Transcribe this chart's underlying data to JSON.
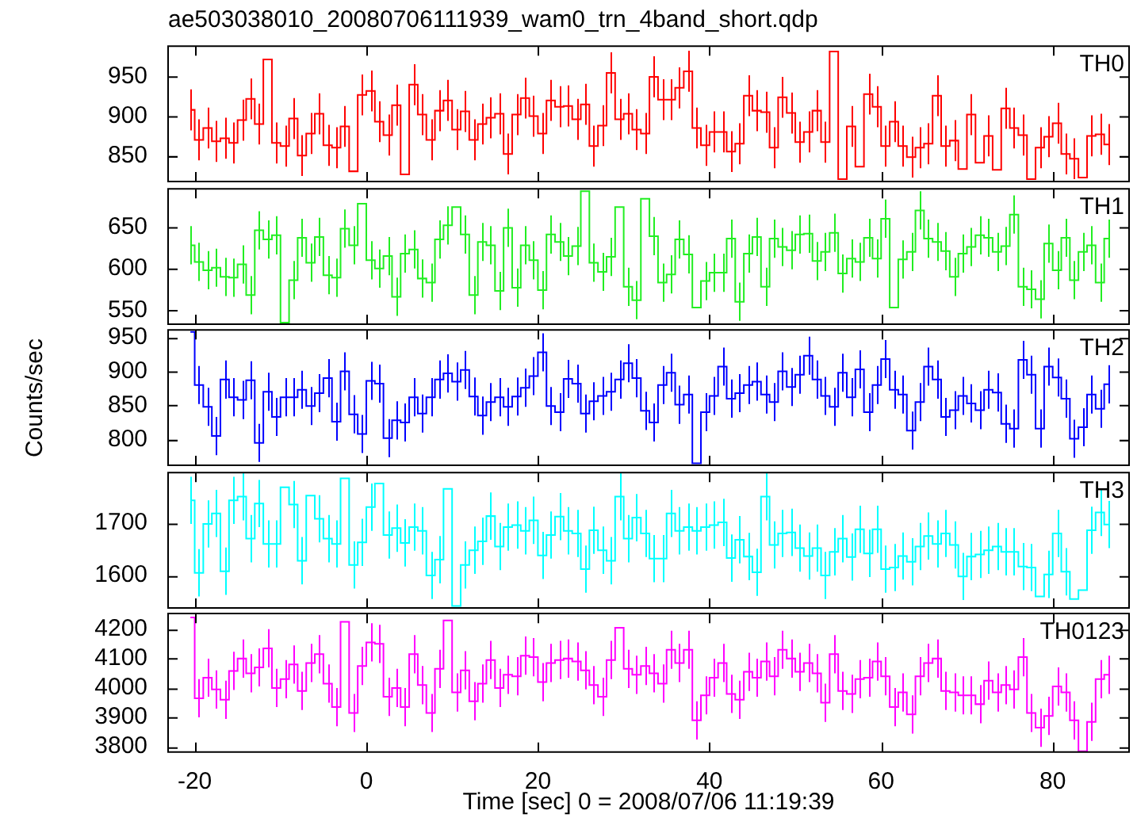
{
  "chart_data": [
    {
      "type": "step",
      "title": "ae503038010_20080706111939_wam0_trn_4band_short.qdp",
      "tick_labels": "y",
      "xlim": [
        -23.1,
        88.9
      ],
      "xticks": [
        -20,
        0,
        20,
        40,
        60,
        80
      ],
      "ylim": [
        817,
        989
      ],
      "yticks": [
        850,
        900,
        950
      ],
      "x": [
        -20.5,
        -19.5,
        -18.5,
        -17.5,
        -16.5,
        -15.5,
        -14.5,
        -13.5,
        -12.5,
        -11.5,
        -10.5,
        -9.5,
        -8.5,
        -7.5,
        -6.5,
        -5.5,
        -4.5,
        -3.5,
        -2.5,
        -1.5,
        -0.5,
        0.5,
        1.5,
        2.5,
        3.5,
        4.5,
        5.5,
        6.5,
        7.5,
        8.5,
        9.5,
        10.5,
        11.5,
        12.5,
        13.5,
        14.5,
        15.5,
        16.5,
        17.5,
        18.5,
        19.5,
        20.5,
        21.5,
        22.5,
        23.5,
        24.5,
        25.5,
        26.5,
        27.5,
        28.5,
        29.5,
        30.5,
        31.5,
        32.5,
        33.5,
        34.5,
        35.5,
        36.5,
        37.5,
        38.5,
        39.5,
        40.5,
        41.5,
        42.5,
        43.5,
        44.5,
        45.5,
        46.5,
        47.5,
        48.5,
        49.5,
        50.5,
        51.5,
        52.5,
        53.5,
        54.5,
        55.5,
        56.5,
        57.5,
        58.5,
        59.5,
        60.5,
        61.5,
        62.5,
        63.5,
        64.5,
        65.5,
        66.5,
        67.5,
        68.5,
        69.5,
        70.5,
        71.5,
        72.5,
        73.5,
        74.5,
        75.5,
        76.5,
        77.5,
        78.5,
        79.5,
        80.5,
        81.5,
        82.5,
        83.5,
        84.5,
        85.5,
        86.5
      ],
      "series": [
        {
          "name": "TH0",
          "color": "#ff0000",
          "values": [
            908,
            870,
            885,
            868,
            872,
            866,
            895,
            922,
            890,
            972,
            866,
            862,
            897,
            850,
            878,
            903,
            863,
            860,
            887,
            830,
            927,
            932,
            893,
            876,
            914,
            826,
            940,
            902,
            870,
            907,
            920,
            883,
            906,
            870,
            890,
            898,
            903,
            852,
            902,
            923,
            900,
            878,
            920,
            912,
            913,
            896,
            915,
            862,
            888,
            955,
            896,
            903,
            883,
            878,
            950,
            921,
            921,
            936,
            957,
            885,
            863,
            880,
            880,
            855,
            865,
            926,
            907,
            905,
            860,
            924,
            904,
            867,
            880,
            907,
            867,
            982,
            820,
            887,
            836,
            928,
            912,
            862,
            893,
            862,
            848,
            860,
            865,
            926,
            862,
            869,
            833,
            902,
            841,
            875,
            832,
            910,
            885,
            876,
            820,
            860,
            874,
            891,
            852,
            846,
            822,
            875,
            877,
            864
          ],
          "errors": [
            26,
            26,
            26,
            26,
            26,
            26,
            26,
            26,
            26,
            null,
            26,
            26,
            26,
            26,
            26,
            26,
            26,
            26,
            26,
            null,
            26,
            26,
            26,
            26,
            26,
            null,
            26,
            26,
            26,
            26,
            26,
            26,
            26,
            26,
            26,
            26,
            26,
            26,
            26,
            26,
            26,
            26,
            26,
            26,
            26,
            26,
            26,
            26,
            26,
            26,
            26,
            26,
            26,
            26,
            26,
            26,
            26,
            26,
            26,
            26,
            26,
            26,
            26,
            26,
            26,
            26,
            26,
            26,
            26,
            26,
            26,
            26,
            26,
            26,
            26,
            null,
            null,
            26,
            null,
            26,
            26,
            26,
            26,
            26,
            26,
            26,
            26,
            26,
            26,
            26,
            null,
            26,
            null,
            26,
            null,
            26,
            26,
            26,
            null,
            26,
            26,
            26,
            26,
            26,
            null,
            26,
            26,
            26
          ]
        }
      ]
    },
    {
      "type": "step",
      "tick_labels": "y",
      "xlim": [
        -23.1,
        88.9
      ],
      "xticks": [
        -20,
        0,
        20,
        40,
        60,
        80
      ],
      "ylim": [
        533,
        696
      ],
      "yticks": [
        550,
        600,
        650
      ],
      "x": [
        -20.5,
        -19.5,
        -18.5,
        -17.5,
        -16.5,
        -15.5,
        -14.5,
        -13.5,
        -12.5,
        -11.5,
        -10.5,
        -9.5,
        -8.5,
        -7.5,
        -6.5,
        -5.5,
        -4.5,
        -3.5,
        -2.5,
        -1.5,
        -0.5,
        0.5,
        1.5,
        2.5,
        3.5,
        4.5,
        5.5,
        6.5,
        7.5,
        8.5,
        9.5,
        10.5,
        11.5,
        12.5,
        13.5,
        14.5,
        15.5,
        16.5,
        17.5,
        18.5,
        19.5,
        20.5,
        21.5,
        22.5,
        23.5,
        24.5,
        25.5,
        26.5,
        27.5,
        28.5,
        29.5,
        30.5,
        31.5,
        32.5,
        33.5,
        34.5,
        35.5,
        36.5,
        37.5,
        38.5,
        39.5,
        40.5,
        41.5,
        42.5,
        43.5,
        44.5,
        45.5,
        46.5,
        47.5,
        48.5,
        49.5,
        50.5,
        51.5,
        52.5,
        53.5,
        54.5,
        55.5,
        56.5,
        57.5,
        58.5,
        59.5,
        60.5,
        61.5,
        62.5,
        63.5,
        64.5,
        65.5,
        66.5,
        67.5,
        68.5,
        69.5,
        70.5,
        71.5,
        72.5,
        73.5,
        74.5,
        75.5,
        76.5,
        77.5,
        78.5,
        79.5,
        80.5,
        81.5,
        82.5,
        83.5,
        84.5,
        85.5,
        86.5
      ],
      "series": [
        {
          "name": "TH1",
          "color": "#22ee22",
          "values": [
            628,
            608,
            598,
            601,
            590,
            589,
            605,
            568,
            646,
            635,
            640,
            535,
            586,
            637,
            607,
            638,
            592,
            589,
            648,
            628,
            678,
            610,
            600,
            615,
            566,
            618,
            623,
            588,
            583,
            635,
            652,
            674,
            641,
            568,
            632,
            628,
            573,
            649,
            577,
            628,
            610,
            574,
            641,
            632,
            615,
            627,
            693,
            607,
            596,
            614,
            674,
            578,
            562,
            684,
            639,
            583,
            593,
            635,
            617,
            553,
            585,
            595,
            595,
            636,
            560,
            618,
            638,
            578,
            636,
            626,
            622,
            641,
            642,
            609,
            620,
            643,
            594,
            612,
            608,
            637,
            612,
            660,
            553,
            611,
            620,
            670,
            636,
            632,
            621,
            590,
            618,
            626,
            640,
            637,
            620,
            627,
            665,
            578,
            575,
            563,
            630,
            598,
            637,
            586,
            620,
            628,
            583,
            636
          ],
          "errors": [
            23,
            23,
            23,
            23,
            23,
            23,
            23,
            23,
            23,
            23,
            23,
            null,
            23,
            23,
            23,
            23,
            23,
            23,
            23,
            23,
            null,
            23,
            23,
            23,
            23,
            23,
            23,
            23,
            23,
            23,
            23,
            null,
            23,
            23,
            23,
            23,
            23,
            23,
            23,
            23,
            23,
            23,
            23,
            23,
            23,
            23,
            null,
            23,
            23,
            23,
            null,
            23,
            23,
            null,
            23,
            23,
            23,
            23,
            23,
            null,
            23,
            23,
            23,
            23,
            23,
            23,
            23,
            23,
            23,
            23,
            23,
            23,
            23,
            23,
            23,
            23,
            23,
            23,
            23,
            23,
            23,
            23,
            null,
            23,
            23,
            23,
            23,
            23,
            23,
            23,
            23,
            23,
            23,
            23,
            23,
            23,
            23,
            23,
            23,
            23,
            23,
            23,
            23,
            23,
            23,
            23,
            23,
            23
          ]
        }
      ]
    },
    {
      "type": "step",
      "tick_labels": "y",
      "ylabel": "Counts/sec",
      "xlim": [
        -23.1,
        88.9
      ],
      "xticks": [
        -20,
        0,
        20,
        40,
        60,
        80
      ],
      "ylim": [
        762,
        961
      ],
      "yticks": [
        800,
        850,
        900,
        950
      ],
      "x": [
        -20.5,
        -19.5,
        -18.5,
        -17.5,
        -16.5,
        -15.5,
        -14.5,
        -13.5,
        -12.5,
        -11.5,
        -10.5,
        -9.5,
        -8.5,
        -7.5,
        -6.5,
        -5.5,
        -4.5,
        -3.5,
        -2.5,
        -1.5,
        -0.5,
        0.5,
        1.5,
        2.5,
        3.5,
        4.5,
        5.5,
        6.5,
        7.5,
        8.5,
        9.5,
        10.5,
        11.5,
        12.5,
        13.5,
        14.5,
        15.5,
        16.5,
        17.5,
        18.5,
        19.5,
        20.5,
        21.5,
        22.5,
        23.5,
        24.5,
        25.5,
        26.5,
        27.5,
        28.5,
        29.5,
        30.5,
        31.5,
        32.5,
        33.5,
        34.5,
        35.5,
        36.5,
        37.5,
        38.5,
        39.5,
        40.5,
        41.5,
        42.5,
        43.5,
        44.5,
        45.5,
        46.5,
        47.5,
        48.5,
        49.5,
        50.5,
        51.5,
        52.5,
        53.5,
        54.5,
        55.5,
        56.5,
        57.5,
        58.5,
        59.5,
        60.5,
        61.5,
        62.5,
        63.5,
        64.5,
        65.5,
        66.5,
        67.5,
        68.5,
        69.5,
        70.5,
        71.5,
        72.5,
        73.5,
        74.5,
        75.5,
        76.5,
        77.5,
        78.5,
        79.5,
        80.5,
        81.5,
        82.5,
        83.5,
        84.5,
        85.5,
        86.5
      ],
      "series": [
        {
          "name": "TH2",
          "color": "#0000ff",
          "values": [
            958,
            880,
            848,
            805,
            888,
            862,
            858,
            887,
            795,
            870,
            833,
            862,
            862,
            873,
            849,
            868,
            890,
            826,
            900,
            837,
            808,
            886,
            882,
            802,
            828,
            825,
            862,
            838,
            862,
            888,
            897,
            885,
            902,
            863,
            835,
            855,
            862,
            848,
            863,
            876,
            893,
            928,
            849,
            840,
            889,
            882,
            838,
            856,
            864,
            870,
            888,
            912,
            890,
            842,
            825,
            880,
            898,
            851,
            866,
            765,
            840,
            864,
            907,
            860,
            868,
            880,
            885,
            866,
            855,
            900,
            877,
            895,
            923,
            888,
            864,
            848,
            898,
            862,
            903,
            840,
            880,
            918,
            873,
            866,
            813,
            855,
            907,
            888,
            833,
            843,
            864,
            853,
            843,
            873,
            869,
            823,
            816,
            917,
            895,
            816,
            907,
            891,
            860,
            801,
            818,
            866,
            845,
            881
          ],
          "errors": [
            null,
            28,
            28,
            28,
            28,
            28,
            28,
            28,
            28,
            28,
            28,
            28,
            28,
            28,
            28,
            28,
            28,
            28,
            28,
            28,
            28,
            28,
            28,
            28,
            28,
            28,
            28,
            28,
            28,
            28,
            28,
            28,
            28,
            28,
            28,
            28,
            28,
            28,
            28,
            28,
            28,
            28,
            28,
            28,
            28,
            28,
            28,
            28,
            28,
            28,
            28,
            28,
            28,
            28,
            28,
            28,
            28,
            28,
            28,
            null,
            28,
            28,
            28,
            28,
            28,
            28,
            28,
            28,
            28,
            28,
            28,
            28,
            28,
            28,
            28,
            28,
            28,
            28,
            28,
            28,
            28,
            28,
            28,
            28,
            28,
            28,
            28,
            28,
            28,
            28,
            28,
            28,
            28,
            28,
            28,
            28,
            28,
            28,
            28,
            28,
            28,
            28,
            28,
            28,
            28,
            28,
            28,
            28
          ]
        }
      ]
    },
    {
      "type": "step",
      "tick_labels": "y",
      "xlim": [
        -23.1,
        88.9
      ],
      "xticks": [
        -20,
        0,
        20,
        40,
        60,
        80
      ],
      "ylim": [
        1538,
        1796
      ],
      "yticks": [
        1600,
        1700
      ],
      "x": [
        -20.5,
        -19.5,
        -18.5,
        -17.5,
        -16.5,
        -15.5,
        -14.5,
        -13.5,
        -12.5,
        -11.5,
        -10.5,
        -9.5,
        -8.5,
        -7.5,
        -6.5,
        -5.5,
        -4.5,
        -3.5,
        -2.5,
        -1.5,
        -0.5,
        0.5,
        1.5,
        2.5,
        3.5,
        4.5,
        5.5,
        6.5,
        7.5,
        8.5,
        9.5,
        10.5,
        11.5,
        12.5,
        13.5,
        14.5,
        15.5,
        16.5,
        17.5,
        18.5,
        19.5,
        20.5,
        21.5,
        22.5,
        23.5,
        24.5,
        25.5,
        26.5,
        27.5,
        28.5,
        29.5,
        30.5,
        31.5,
        32.5,
        33.5,
        34.5,
        35.5,
        36.5,
        37.5,
        38.5,
        39.5,
        40.5,
        41.5,
        42.5,
        43.5,
        44.5,
        45.5,
        46.5,
        47.5,
        48.5,
        49.5,
        50.5,
        51.5,
        52.5,
        53.5,
        54.5,
        55.5,
        56.5,
        57.5,
        58.5,
        59.5,
        60.5,
        61.5,
        62.5,
        63.5,
        64.5,
        65.5,
        66.5,
        67.5,
        68.5,
        69.5,
        70.5,
        71.5,
        72.5,
        73.5,
        74.5,
        75.5,
        76.5,
        77.5,
        78.5,
        79.5,
        80.5,
        81.5,
        82.5,
        83.5,
        84.5,
        85.5,
        86.5
      ],
      "series": [
        {
          "name": "TH3",
          "color": "#00ffff",
          "values": [
            1743,
            1605,
            1698,
            1718,
            1608,
            1743,
            1750,
            1670,
            1737,
            1660,
            1660,
            1768,
            1735,
            1628,
            1752,
            1708,
            1670,
            1660,
            1785,
            1620,
            1663,
            1730,
            1775,
            1677,
            1690,
            1662,
            1692,
            1685,
            1600,
            1630,
            1765,
            1542,
            1620,
            1648,
            1665,
            1713,
            1655,
            1692,
            1696,
            1685,
            1705,
            1638,
            1677,
            1712,
            1685,
            1680,
            1612,
            1686,
            1648,
            1628,
            1750,
            1670,
            1710,
            1680,
            1632,
            1632,
            1718,
            1685,
            1692,
            1685,
            1692,
            1696,
            1701,
            1633,
            1668,
            1636,
            1606,
            1750,
            1658,
            1680,
            1682,
            1652,
            1637,
            1652,
            1600,
            1645,
            1670,
            1635,
            1688,
            1642,
            1688,
            1612,
            1615,
            1637,
            1626,
            1655,
            1675,
            1660,
            1680,
            1658,
            1598,
            1636,
            1640,
            1648,
            1655,
            1645,
            1645,
            1617,
            1615,
            1560,
            1602,
            1680,
            1607,
            1555,
            1572,
            1686,
            1720,
            1697
          ],
          "errors": [
            45,
            45,
            45,
            45,
            45,
            45,
            45,
            45,
            45,
            45,
            45,
            null,
            45,
            45,
            null,
            45,
            45,
            45,
            null,
            45,
            45,
            45,
            null,
            45,
            45,
            45,
            45,
            45,
            45,
            45,
            null,
            null,
            45,
            45,
            45,
            45,
            45,
            45,
            45,
            45,
            45,
            45,
            45,
            45,
            45,
            45,
            45,
            45,
            45,
            45,
            45,
            45,
            45,
            45,
            45,
            45,
            45,
            45,
            45,
            45,
            45,
            45,
            45,
            45,
            45,
            45,
            45,
            45,
            45,
            45,
            45,
            45,
            45,
            45,
            45,
            45,
            45,
            45,
            45,
            45,
            45,
            45,
            45,
            45,
            45,
            45,
            45,
            45,
            45,
            45,
            45,
            45,
            45,
            45,
            45,
            45,
            45,
            45,
            45,
            null,
            45,
            45,
            45,
            null,
            null,
            45,
            45,
            45
          ]
        }
      ]
    },
    {
      "type": "step",
      "xlabel": "Time [sec] 0 = 2008/07/06 11:19:39",
      "xlim": [
        -23.1,
        88.9
      ],
      "xticks": [
        -20,
        0,
        20,
        40,
        60,
        80
      ],
      "ylim": [
        3782,
        4253
      ],
      "yticks": [
        3800,
        3900,
        4000,
        4100,
        4200
      ],
      "x": [
        -20.5,
        -19.5,
        -18.5,
        -17.5,
        -16.5,
        -15.5,
        -14.5,
        -13.5,
        -12.5,
        -11.5,
        -10.5,
        -9.5,
        -8.5,
        -7.5,
        -6.5,
        -5.5,
        -4.5,
        -3.5,
        -2.5,
        -1.5,
        -0.5,
        0.5,
        1.5,
        2.5,
        3.5,
        4.5,
        5.5,
        6.5,
        7.5,
        8.5,
        9.5,
        10.5,
        11.5,
        12.5,
        13.5,
        14.5,
        15.5,
        16.5,
        17.5,
        18.5,
        19.5,
        20.5,
        21.5,
        22.5,
        23.5,
        24.5,
        25.5,
        26.5,
        27.5,
        28.5,
        29.5,
        30.5,
        31.5,
        32.5,
        33.5,
        34.5,
        35.5,
        36.5,
        37.5,
        38.5,
        39.5,
        40.5,
        41.5,
        42.5,
        43.5,
        44.5,
        45.5,
        46.5,
        47.5,
        48.5,
        49.5,
        50.5,
        51.5,
        52.5,
        53.5,
        54.5,
        55.5,
        56.5,
        57.5,
        58.5,
        59.5,
        60.5,
        61.5,
        62.5,
        63.5,
        64.5,
        65.5,
        66.5,
        67.5,
        68.5,
        69.5,
        70.5,
        71.5,
        72.5,
        73.5,
        74.5,
        75.5,
        76.5,
        77.5,
        78.5,
        79.5,
        80.5,
        81.5,
        82.5,
        83.5,
        84.5,
        85.5,
        86.5
      ],
      "series": [
        {
          "name": "TH0123",
          "color": "#ff00ff",
          "values": [
            4240,
            3965,
            4035,
            3995,
            3960,
            4058,
            4100,
            4050,
            4070,
            4135,
            4000,
            4030,
            4080,
            3990,
            4085,
            4115,
            4015,
            3935,
            4225,
            3915,
            4075,
            4155,
            4150,
            3970,
            4000,
            3935,
            4115,
            4010,
            3915,
            4065,
            4230,
            3985,
            4060,
            3955,
            4015,
            4095,
            4000,
            4045,
            4040,
            4110,
            4105,
            4020,
            4085,
            4095,
            4100,
            4090,
            4060,
            4010,
            3970,
            4095,
            4205,
            4065,
            4045,
            4075,
            4050,
            4015,
            4130,
            4085,
            4130,
            3890,
            3975,
            4035,
            4085,
            3980,
            3960,
            4055,
            4035,
            4090,
            4040,
            4130,
            4100,
            4055,
            4085,
            4050,
            3950,
            4115,
            3990,
            3980,
            4030,
            4035,
            4090,
            4040,
            3935,
            3985,
            3910,
            4040,
            4085,
            4100,
            3990,
            3985,
            3975,
            3975,
            3945,
            4025,
            3985,
            4010,
            3995,
            4105,
            3915,
            3865,
            3905,
            4005,
            3985,
            3890,
            3785,
            3885,
            4030,
            4045
          ],
          "errors": [
            null,
            65,
            65,
            65,
            65,
            65,
            65,
            65,
            65,
            65,
            65,
            65,
            65,
            65,
            65,
            65,
            65,
            65,
            null,
            65,
            65,
            65,
            65,
            65,
            65,
            65,
            65,
            65,
            65,
            65,
            null,
            65,
            65,
            65,
            65,
            65,
            65,
            65,
            65,
            65,
            65,
            65,
            65,
            65,
            65,
            65,
            65,
            65,
            65,
            65,
            null,
            65,
            65,
            65,
            65,
            65,
            65,
            65,
            65,
            65,
            65,
            65,
            65,
            65,
            65,
            65,
            65,
            65,
            65,
            65,
            65,
            65,
            65,
            65,
            65,
            65,
            65,
            65,
            65,
            65,
            65,
            65,
            65,
            65,
            65,
            65,
            65,
            65,
            65,
            65,
            65,
            65,
            65,
            65,
            65,
            65,
            65,
            65,
            65,
            65,
            65,
            65,
            65,
            65,
            null,
            65,
            65,
            65
          ]
        }
      ]
    }
  ]
}
